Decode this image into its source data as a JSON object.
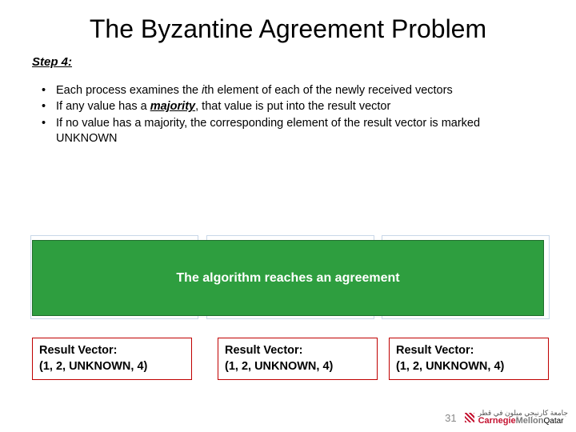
{
  "title": "The Byzantine Agreement Problem",
  "step_label": "Step 4:",
  "bullets": {
    "b1_pre": "Each process examines the ",
    "b1_ith": "i",
    "b1_th": "th",
    "b1_post": " element of each of the newly received vectors",
    "b2_pre": "If any value has a ",
    "b2_majority": "majority",
    "b2_post": ", that value is put into the result vector",
    "b3": "If no value has a majority, the corresponding element of the result vector is marked UNKNOWN"
  },
  "banner": "The algorithm reaches an agreement",
  "results": {
    "heading": "Result Vector:",
    "r1": "(1, 2, UNKNOWN, 4)",
    "r2": "(1, 2, UNKNOWN, 4)",
    "r3": "(1, 2, UNKNOWN, 4)"
  },
  "page_number": "31",
  "logo": {
    "arabic": "جامعة كارنيجي ميلون في قطر",
    "carnegie": "Carnegie",
    "mellon": "Mellon",
    "qatar": "Qatar"
  },
  "colors": {
    "green_bg": "#2e9e3f",
    "green_border": "#1f6e2c",
    "result_border": "#c00000",
    "shadow_border": "#c8d7e8",
    "cmu_red": "#c41230",
    "cmu_grey": "#7b7b7b"
  }
}
